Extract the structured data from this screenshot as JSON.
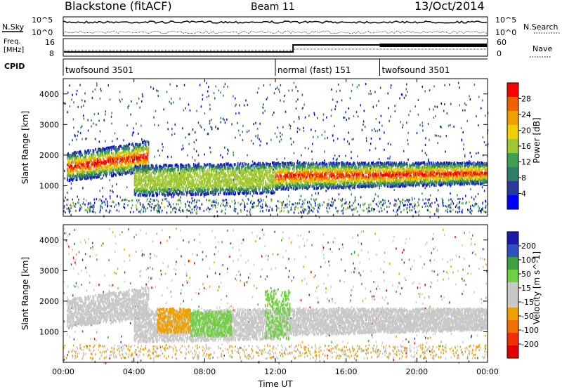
{
  "header": {
    "station": "Blackstone (fitACF)",
    "beam": "Beam 11",
    "date": "13/Oct/2014"
  },
  "summary": {
    "nsky_label": "N.Sky",
    "nsky_ticks": [
      "10^5",
      "10^0"
    ],
    "nsearch_label": "N.Search",
    "nsearch_ticks": [
      "10^5",
      "10^0"
    ],
    "freq_label_1": "Freq.",
    "freq_label_2": "[MHz]",
    "freq_ticks": [
      "16",
      "8"
    ],
    "nave_label": "Nave",
    "nave_ticks": [
      "60",
      "0"
    ],
    "cpid_label": "CPID",
    "cpid_segments": [
      {
        "label": "twofsound 3501",
        "start_h": 0,
        "end_h": 12.0
      },
      {
        "label": "normal (fast) 151",
        "start_h": 12.0,
        "end_h": 17.9
      },
      {
        "label": "twofsound 3501",
        "start_h": 17.9,
        "end_h": 24
      }
    ]
  },
  "colors": {
    "power_scale": [
      "#0000ff",
      "#2a3a9a",
      "#2e7d6a",
      "#40a050",
      "#a0c830",
      "#f0d000",
      "#f0a000",
      "#f06000",
      "#ff0000"
    ],
    "velocity_scale": [
      "#1a1ab0",
      "#3050c0",
      "#40a040",
      "#70d040",
      "#c8c8c8",
      "#c8c8c8",
      "#f0a000",
      "#f07000",
      "#f03000",
      "#e00000"
    ]
  },
  "chart_data": [
    {
      "type": "heatmap",
      "name": "power",
      "xlabel": "",
      "ylabel": "Slant Range [km]",
      "xlim": [
        0,
        24
      ],
      "ylim": [
        0,
        4500
      ],
      "yticks": [
        "1000",
        "2000",
        "3000",
        "4000"
      ],
      "colorbar_label": "Power [dB]",
      "colorbar_ticks": [
        "4",
        "8",
        "12",
        "16",
        "20",
        "24",
        "28"
      ],
      "bands": [
        {
          "x0": 0.2,
          "x1": 4.8,
          "y0_start": 1200,
          "y1_start": 2100,
          "y0_end": 1500,
          "y1_end": 2500
        },
        {
          "x0": 4.0,
          "x1": 12.0,
          "y0_start": 700,
          "y1_start": 1700,
          "y0_end": 800,
          "y1_end": 1800
        },
        {
          "x0": 12.0,
          "x1": 24.0,
          "y0_start": 900,
          "y1_start": 1800,
          "y0_end": 1100,
          "y1_end": 1800
        }
      ]
    },
    {
      "type": "heatmap",
      "name": "velocity",
      "xlabel": "Time UT",
      "ylabel": "Slant Range [km]",
      "xlim": [
        0,
        24
      ],
      "ylim": [
        0,
        4500
      ],
      "yticks": [
        "1000",
        "2000",
        "3000",
        "4000"
      ],
      "xticks": [
        "00:00",
        "04:00",
        "08:00",
        "12:00",
        "16:00",
        "20:00",
        "00:00"
      ],
      "colorbar_label": "Velocity [m s^-1]",
      "colorbar_ticks": [
        "200",
        "100",
        "50",
        "15",
        "-15",
        "-50",
        "-100",
        "-200"
      ],
      "regions": [
        {
          "x0": 5.3,
          "x1": 7.2,
          "y0": 1000,
          "y1": 1800,
          "value": -50
        },
        {
          "x0": 7.2,
          "x1": 9.5,
          "y0": 900,
          "y1": 1700,
          "value": 50
        },
        {
          "x0": 11.4,
          "x1": 12.8,
          "y0": 800,
          "y1": 2400,
          "value": 40
        }
      ]
    }
  ]
}
